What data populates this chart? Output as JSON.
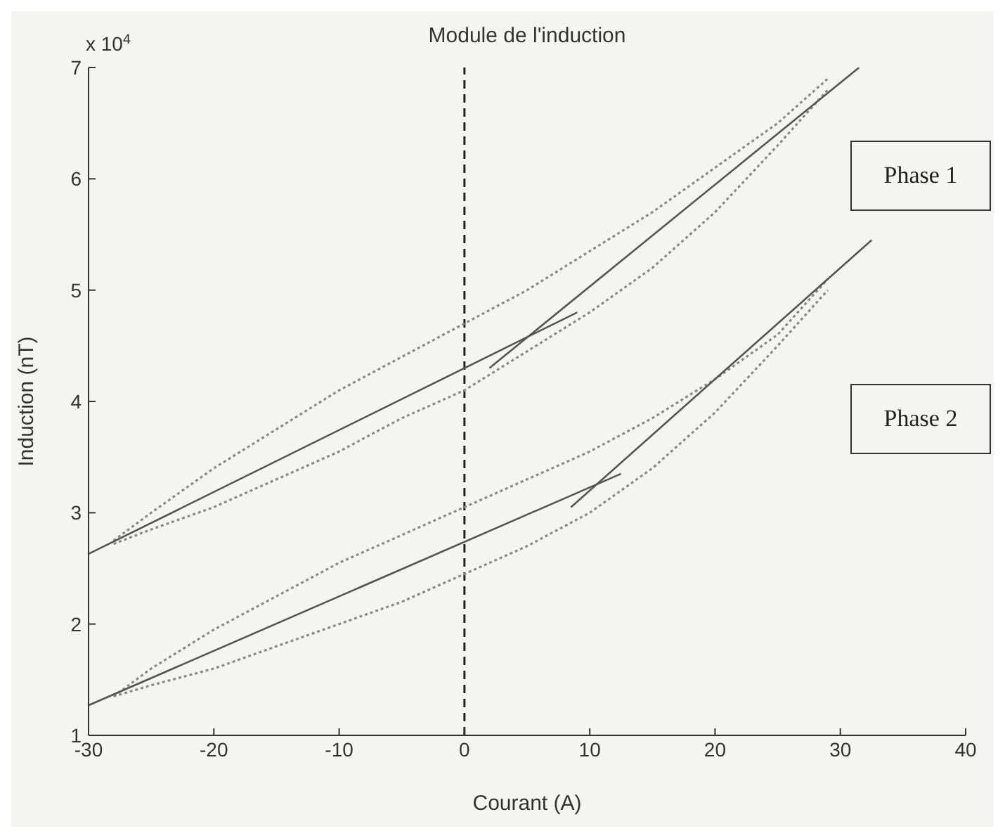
{
  "chart_data": {
    "type": "line",
    "title": "Module de l'induction",
    "xlabel": "Courant (A)",
    "ylabel": "Induction (nT)",
    "annotations": [
      "x 10$^{4}$",
      "Phase 1",
      "Phase 2"
    ],
    "xlim": [
      -30,
      40
    ],
    "xticks": [
      -30,
      -20,
      -10,
      0,
      10,
      20,
      30,
      40
    ],
    "ylim": [
      1,
      7
    ],
    "yticks": [
      1,
      2,
      3,
      4,
      5,
      6,
      7
    ],
    "grid": false,
    "legend": false,
    "marker": "none",
    "ref_lines": [
      {
        "axis": "x",
        "value": 0,
        "color": "#222222",
        "line_style": "dashed"
      }
    ],
    "series": [
      {
        "color": "#8a8a8a",
        "line_style": "dotted",
        "x": [
          -28,
          -25,
          -20,
          -15,
          -10,
          -5,
          0,
          5,
          10,
          15,
          20,
          25,
          29
        ],
        "values": [
          2.75,
          3.0,
          3.4,
          3.75,
          4.1,
          4.4,
          4.7,
          5.0,
          5.35,
          5.7,
          6.1,
          6.5,
          6.9
        ]
      },
      {
        "color": "#8a8a8a",
        "line_style": "dotted",
        "x": [
          -28,
          -25,
          -20,
          -15,
          -10,
          -5,
          0,
          5,
          10,
          15,
          20,
          25,
          29
        ],
        "values": [
          2.72,
          2.85,
          3.05,
          3.3,
          3.55,
          3.85,
          4.1,
          4.45,
          4.8,
          5.2,
          5.7,
          6.3,
          6.8
        ]
      },
      {
        "color": "#8a8a8a",
        "line_style": "dotted",
        "x": [
          -28,
          -25,
          -20,
          -15,
          -10,
          -5,
          0,
          5,
          10,
          15,
          20,
          25,
          29
        ],
        "values": [
          1.35,
          1.6,
          1.95,
          2.25,
          2.55,
          2.8,
          3.05,
          3.3,
          3.55,
          3.85,
          4.2,
          4.6,
          5.1
        ]
      },
      {
        "color": "#8a8a8a",
        "line_style": "dotted",
        "x": [
          -28,
          -25,
          -20,
          -15,
          -10,
          -5,
          0,
          5,
          10,
          15,
          20,
          25,
          29
        ],
        "values": [
          1.35,
          1.45,
          1.6,
          1.8,
          2.0,
          2.2,
          2.45,
          2.7,
          3.0,
          3.4,
          3.9,
          4.5,
          5.0
        ]
      },
      {
        "color": "#555555",
        "line_style": "solid",
        "x": [
          -30,
          9
        ],
        "values": [
          2.63,
          4.8
        ]
      },
      {
        "color": "#555555",
        "line_style": "solid",
        "x": [
          2,
          31.5
        ],
        "values": [
          4.3,
          7
        ]
      },
      {
        "color": "#555555",
        "line_style": "solid",
        "x": [
          -30,
          12.5
        ],
        "values": [
          1.27,
          3.35
        ]
      },
      {
        "color": "#555555",
        "line_style": "solid",
        "x": [
          8.5,
          32.5
        ],
        "values": [
          3.05,
          5.45
        ]
      }
    ]
  }
}
